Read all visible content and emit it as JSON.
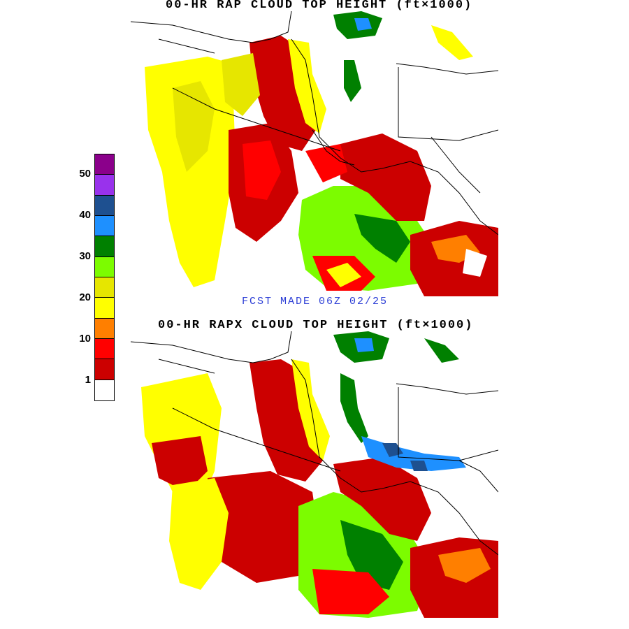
{
  "titles": {
    "top": "00-HR RAP CLOUD TOP HEIGHT (ft×1000)",
    "bottom": "00-HR RAPX  CLOUD TOP HEIGHT (ft×1000)",
    "forecast": "FCST MADE 06Z  02/25"
  },
  "legend": {
    "labels": [
      "50",
      "40",
      "30",
      "20",
      "10",
      "1"
    ],
    "colors": [
      "#8b008b",
      "#9932ec",
      "#1e5090",
      "#1e90ff",
      "#008000",
      "#7cfc00",
      "#e6e600",
      "#ffff00",
      "#ff7f00",
      "#ff0000",
      "#cc0000",
      "#ffffff"
    ]
  },
  "palette": {
    "red_dark": "#cc0000",
    "red": "#ff0000",
    "orange": "#ff7f00",
    "yellow": "#ffff00",
    "yellow_dark": "#e6e600",
    "green_light": "#7cfc00",
    "green": "#008000",
    "blue_light": "#1e90ff",
    "blue_dark": "#1e5090"
  }
}
